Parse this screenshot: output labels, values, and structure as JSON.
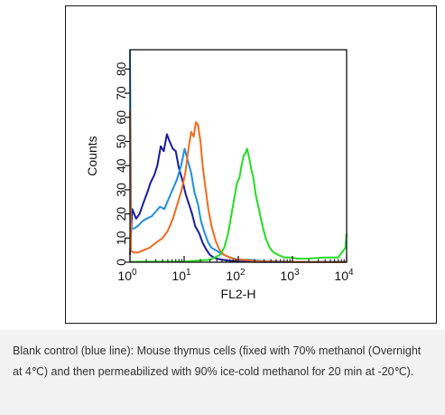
{
  "chart_data": {
    "type": "line",
    "xlabel": "FL2-H",
    "ylabel": "Counts",
    "x_scale": "log",
    "xlim": [
      1,
      10000
    ],
    "ylim": [
      0,
      88
    ],
    "x_ticks": [
      {
        "value": 1,
        "base": "10",
        "exp": "0"
      },
      {
        "value": 10,
        "base": "10",
        "exp": "1"
      },
      {
        "value": 100,
        "base": "10",
        "exp": "2"
      },
      {
        "value": 1000,
        "base": "10",
        "exp": "3"
      },
      {
        "value": 10000,
        "base": "10",
        "exp": "4"
      }
    ],
    "y_ticks": [
      "0",
      "10",
      "20",
      "30",
      "40",
      "50",
      "60",
      "70",
      "80"
    ],
    "grid": false,
    "legend": "none",
    "series": [
      {
        "color": "#1a1aa0",
        "x": [
          1,
          1.1,
          1.3,
          1.5,
          1.8,
          2.1,
          2.4,
          2.8,
          3.2,
          3.7,
          4.2,
          4.8,
          5.4,
          6.2,
          7.0,
          8.0,
          9.3,
          10.7,
          12.3,
          14,
          16,
          19,
          22,
          26,
          30,
          35,
          40,
          50,
          60,
          80,
          100,
          150,
          300,
          1000,
          10000
        ],
        "y": [
          3,
          22,
          18,
          20,
          25,
          29,
          33,
          36,
          40,
          48,
          46,
          53,
          50,
          47,
          46,
          39,
          34,
          28,
          24,
          20,
          15,
          12,
          8,
          5,
          3,
          2,
          1.5,
          1,
          0.8,
          0.5,
          0.3,
          0.2,
          0.1,
          0.1,
          0.1
        ]
      },
      {
        "color": "#1e8fe0",
        "x": [
          1,
          1.05,
          1.2,
          1.4,
          1.7,
          2.0,
          2.5,
          3.0,
          3.6,
          4.3,
          5.1,
          6.1,
          7.3,
          8.8,
          10.2,
          11.7,
          13.5,
          15.5,
          18,
          20.5,
          24,
          28,
          32,
          38,
          45,
          55,
          70,
          100,
          150,
          300,
          1000,
          10000
        ],
        "y": [
          88,
          14,
          14,
          15,
          17,
          18,
          19,
          21,
          23,
          22,
          26,
          30,
          34,
          40,
          47,
          42,
          37,
          29,
          24,
          17,
          12,
          8,
          6,
          5,
          4,
          3,
          2,
          1,
          1,
          0.5,
          0.2,
          0.2
        ]
      },
      {
        "color": "#f26a1b",
        "x": [
          1,
          1.04,
          1.15,
          1.4,
          1.8,
          2.3,
          3,
          4,
          5,
          6.2,
          7.5,
          9,
          10.5,
          12,
          13.5,
          15,
          16.5,
          18,
          20,
          22,
          25,
          28,
          32,
          38,
          45,
          55,
          70,
          90,
          120,
          200,
          500,
          2000,
          10000
        ],
        "y": [
          63,
          5,
          4,
          4,
          5,
          6,
          8,
          10,
          13,
          18,
          24,
          30,
          37,
          47,
          54,
          52,
          58,
          57,
          50,
          40,
          30,
          22,
          15,
          9,
          5,
          3,
          2,
          1,
          1,
          0.5,
          0.2,
          0.1,
          0.1
        ]
      },
      {
        "color": "#22dd22",
        "x": [
          1,
          10,
          30,
          45,
          55,
          65,
          75,
          85,
          95,
          105,
          115,
          125,
          135,
          145,
          160,
          175,
          190,
          210,
          240,
          280,
          320,
          380,
          450,
          550,
          700,
          900,
          1200,
          2000,
          4000,
          7000,
          9500,
          10000
        ],
        "y": [
          0.2,
          0.3,
          1,
          3,
          6,
          12,
          20,
          27,
          33,
          35,
          40,
          44,
          45,
          47,
          43,
          38,
          35,
          28,
          22,
          15,
          10,
          6,
          4,
          3,
          2,
          2,
          1.5,
          1.5,
          2,
          2,
          6,
          12
        ]
      }
    ]
  },
  "caption": "Blank control (blue line): Mouse thymus cells (fixed with 70% methanol (Overnight at 4℃) and then permeabilized with 90% ice-cold methanol for 20 min at -20℃)."
}
